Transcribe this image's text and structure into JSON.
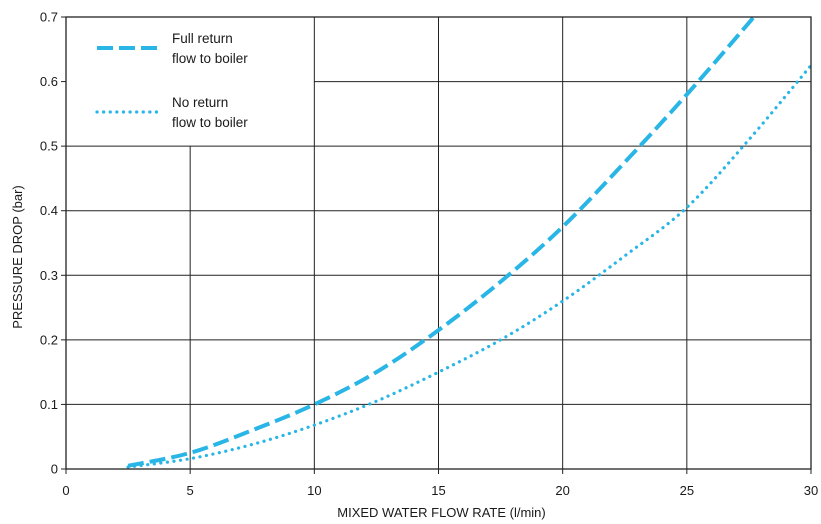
{
  "chart_data": {
    "type": "line",
    "xlabel": "MIXED WATER FLOW RATE (l/min)",
    "ylabel": "PRESSURE DROP (bar)",
    "xlim": [
      0,
      30
    ],
    "ylim": [
      0,
      0.7
    ],
    "xticks": [
      0,
      5,
      10,
      15,
      20,
      25,
      30
    ],
    "xtick_labels": [
      "0",
      "5",
      "10",
      "15",
      "20",
      "25",
      "30"
    ],
    "yticks": [
      0,
      0.1,
      0.2,
      0.3,
      0.4,
      0.5,
      0.6,
      0.7
    ],
    "ytick_labels": [
      "0",
      "0.1",
      "0.2",
      "0.3",
      "0.4",
      "0.5",
      "0.6",
      "0.7"
    ],
    "grid": true,
    "legend_position": "top-left",
    "series": [
      {
        "name": "Full return flow to boiler",
        "legend_lines": [
          "Full return",
          "flow to boiler"
        ],
        "style": "dashed",
        "color": "#29b6e6",
        "x": [
          2.5,
          5,
          7.5,
          10,
          12.5,
          15,
          17.5,
          20,
          22.5,
          25,
          27.7
        ],
        "y": [
          0.005,
          0.025,
          0.06,
          0.1,
          0.15,
          0.215,
          0.29,
          0.375,
          0.475,
          0.58,
          0.7
        ]
      },
      {
        "name": "No return flow to boiler",
        "legend_lines": [
          "No return",
          "flow to boiler"
        ],
        "style": "dotted",
        "color": "#29b6e6",
        "x": [
          2.5,
          5,
          7.5,
          10,
          12.5,
          15,
          17.5,
          20,
          22.5,
          25,
          27.5,
          30
        ],
        "y": [
          0.003,
          0.016,
          0.038,
          0.068,
          0.105,
          0.15,
          0.2,
          0.26,
          0.33,
          0.405,
          0.51,
          0.625
        ]
      }
    ]
  }
}
